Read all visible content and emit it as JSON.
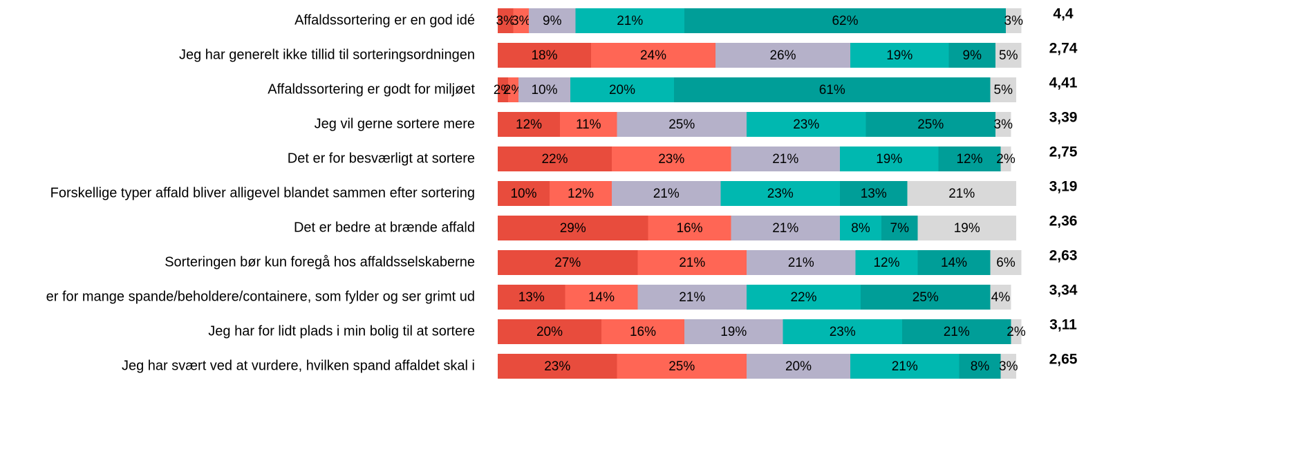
{
  "chart_data": {
    "type": "stacked-bar-horizontal",
    "categories": [
      "Affaldssortering er en god idé",
      "Jeg har generelt ikke tillid til sorteringsordningen",
      "Affaldssortering er godt for miljøet",
      "Jeg vil gerne sortere mere",
      "Det er for besværligt at sortere",
      "Forskellige typer affald bliver alligevel blandet sammen efter sortering",
      "Det er bedre at brænde affald",
      "Sorteringen bør kun foregå hos affaldsselskaberne",
      "er for mange spande/beholdere/containere, som fylder og ser grimt ud",
      "Jeg har for lidt plads i min bolig til at sortere",
      "Jeg har svært ved at vurdere, hvilken spand affaldet skal i"
    ],
    "xlim": [
      0,
      100
    ],
    "series": [
      {
        "color": "#e84c3d",
        "values": [
          3,
          18,
          2,
          12,
          22,
          10,
          29,
          27,
          13,
          20,
          23
        ],
        "value_labels": [
          "3%",
          "18%",
          "2%",
          "12%",
          "22%",
          "10%",
          "29%",
          "27%",
          "13%",
          "20%",
          "23%"
        ]
      },
      {
        "color": "#ff6655",
        "values": [
          3,
          24,
          2,
          11,
          23,
          12,
          16,
          21,
          14,
          16,
          25
        ],
        "value_labels": [
          "3%",
          "24%",
          "2%",
          "11%",
          "23%",
          "12%",
          "16%",
          "21%",
          "14%",
          "16%",
          "25%"
        ]
      },
      {
        "color": "#b5b1c9",
        "values": [
          9,
          26,
          10,
          25,
          21,
          21,
          21,
          21,
          21,
          19,
          20
        ],
        "value_labels": [
          "9%",
          "26%",
          "10%",
          "25%",
          "21%",
          "21%",
          "21%",
          "21%",
          "21%",
          "19%",
          "20%"
        ]
      },
      {
        "color": "#00b8b0",
        "values": [
          21,
          19,
          20,
          23,
          19,
          23,
          8,
          12,
          22,
          23,
          21
        ],
        "value_labels": [
          "21%",
          "19%",
          "20%",
          "23%",
          "19%",
          "23%",
          "8%",
          "12%",
          "22%",
          "23%",
          "21%"
        ]
      },
      {
        "color": "#009e98",
        "values": [
          62,
          9,
          61,
          25,
          12,
          13,
          7,
          14,
          25,
          21,
          8
        ],
        "value_labels": [
          "62%",
          "9%",
          "61%",
          "25%",
          "12%",
          "13%",
          "7%",
          "14%",
          "25%",
          "21%",
          "8%"
        ]
      },
      {
        "color": "#d9d9d9",
        "values": [
          3,
          5,
          5,
          3,
          2,
          21,
          19,
          6,
          4,
          2,
          3
        ],
        "value_labels": [
          "3%",
          "5%",
          "5%",
          "3%",
          "2%",
          "21%",
          "19%",
          "6%",
          "4%",
          "2%",
          "3%"
        ]
      }
    ],
    "scores": [
      4.4,
      2.74,
      4.41,
      3.39,
      2.75,
      3.19,
      2.36,
      2.63,
      3.34,
      3.11,
      2.65
    ],
    "score_labels": [
      "4,4",
      "2,74",
      "4,41",
      "3,39",
      "2,75",
      "3,19",
      "2,36",
      "2,63",
      "3,34",
      "3,11",
      "2,65"
    ]
  }
}
